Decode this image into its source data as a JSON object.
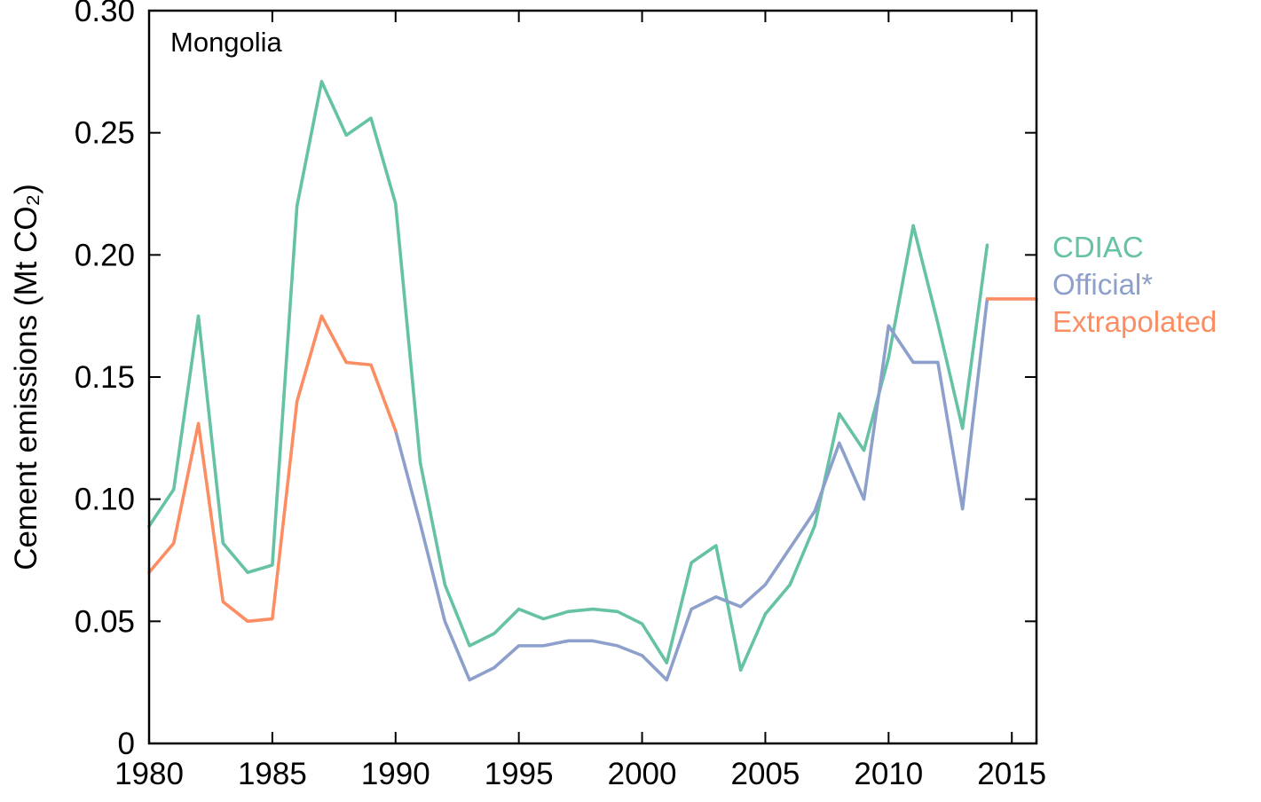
{
  "chart_data": {
    "type": "line",
    "title": "Mongolia",
    "ylabel": "Cement emissions (Mt CO₂)",
    "xlabel": "",
    "xlim": [
      1980,
      2016
    ],
    "ylim": [
      0,
      0.3
    ],
    "xticks": [
      1980,
      1985,
      1990,
      1995,
      2000,
      2005,
      2010,
      2015
    ],
    "xtick_labels": [
      "1980",
      "1985",
      "1990",
      "1995",
      "2000",
      "2005",
      "2010",
      "2015"
    ],
    "yticks": [
      0,
      0.05,
      0.1,
      0.15,
      0.2,
      0.25,
      0.3
    ],
    "ytick_labels": [
      "0",
      "0.05",
      "0.10",
      "0.15",
      "0.20",
      "0.25",
      "0.30"
    ],
    "grid": false,
    "legend_position": "right-outside",
    "axis_color": "#000000",
    "series": [
      {
        "name": "CDIAC",
        "color": "#66c2a5",
        "segments": [
          {
            "x": [
              1980,
              1981,
              1982,
              1983,
              1984,
              1985,
              1986,
              1987,
              1988,
              1989,
              1990,
              1991,
              1992,
              1993,
              1994,
              1995,
              1996,
              1997,
              1998,
              1999,
              2000,
              2001,
              2002,
              2003,
              2004,
              2005,
              2006,
              2007,
              2008,
              2009,
              2010,
              2011,
              2012,
              2013,
              2014
            ],
            "y": [
              0.089,
              0.104,
              0.175,
              0.082,
              0.07,
              0.073,
              0.22,
              0.271,
              0.249,
              0.256,
              0.221,
              0.115,
              0.065,
              0.04,
              0.045,
              0.055,
              0.051,
              0.054,
              0.055,
              0.054,
              0.049,
              0.033,
              0.074,
              0.081,
              0.03,
              0.053,
              0.065,
              0.089,
              0.135,
              0.12,
              0.158,
              0.212,
              0.172,
              0.129,
              0.204
            ]
          }
        ]
      },
      {
        "name": "Official*",
        "color": "#8da0cb",
        "segments": [
          {
            "x": [
              1990,
              1991,
              1992,
              1993,
              1994,
              1995,
              1996,
              1997,
              1998,
              1999,
              2000,
              2001,
              2002,
              2003,
              2004,
              2005,
              2006,
              2007,
              2008,
              2009,
              2010,
              2011,
              2012,
              2013,
              2014
            ],
            "y": [
              0.128,
              0.09,
              0.05,
              0.026,
              0.031,
              0.04,
              0.04,
              0.042,
              0.042,
              0.04,
              0.036,
              0.026,
              0.055,
              0.06,
              0.056,
              0.065,
              0.08,
              0.095,
              0.123,
              0.1,
              0.171,
              0.156,
              0.156,
              0.096,
              0.182
            ]
          }
        ]
      },
      {
        "name": "Extrapolated",
        "color": "#fc8d62",
        "segments": [
          {
            "x": [
              1980,
              1981,
              1982,
              1983,
              1984,
              1985,
              1986,
              1987,
              1988,
              1989,
              1990
            ],
            "y": [
              0.07,
              0.082,
              0.131,
              0.058,
              0.05,
              0.051,
              0.14,
              0.175,
              0.156,
              0.155,
              0.128
            ]
          },
          {
            "x": [
              2014,
              2016
            ],
            "y": [
              0.182,
              0.182
            ]
          }
        ]
      }
    ]
  }
}
